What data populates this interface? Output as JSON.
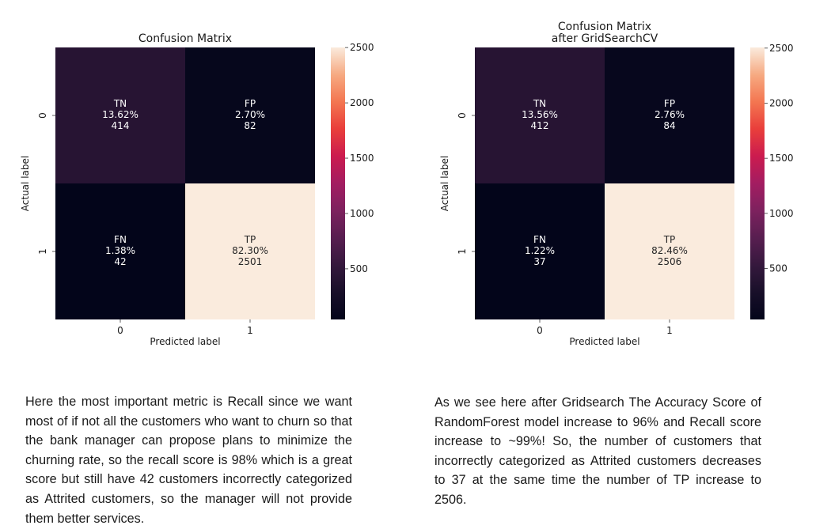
{
  "chart_data": [
    {
      "type": "heatmap",
      "title": [
        "Confusion Matrix"
      ],
      "xlabel": "Predicted label",
      "ylabel": "Actual label",
      "x_categories": [
        "0",
        "1"
      ],
      "y_categories": [
        "0",
        "1"
      ],
      "cells": [
        {
          "row": 0,
          "col": 0,
          "name": "TN",
          "percent": "13.62%",
          "value": 414
        },
        {
          "row": 0,
          "col": 1,
          "name": "FP",
          "percent": "2.70%",
          "value": 82
        },
        {
          "row": 1,
          "col": 0,
          "name": "FN",
          "percent": "1.38%",
          "value": 42
        },
        {
          "row": 1,
          "col": 1,
          "name": "TP",
          "percent": "82.30%",
          "value": 2501
        }
      ],
      "colorbar": {
        "ticks": [
          500,
          1000,
          1500,
          2000,
          2500
        ],
        "range": [
          42,
          2501
        ],
        "colormap": "rocket"
      }
    },
    {
      "type": "heatmap",
      "title": [
        "Confusion Matrix",
        "after GridSearchCV"
      ],
      "xlabel": "Predicted label",
      "ylabel": "Actual label",
      "x_categories": [
        "0",
        "1"
      ],
      "y_categories": [
        "0",
        "1"
      ],
      "cells": [
        {
          "row": 0,
          "col": 0,
          "name": "TN",
          "percent": "13.56%",
          "value": 412
        },
        {
          "row": 0,
          "col": 1,
          "name": "FP",
          "percent": "2.76%",
          "value": 84
        },
        {
          "row": 1,
          "col": 0,
          "name": "FN",
          "percent": "1.22%",
          "value": 37
        },
        {
          "row": 1,
          "col": 1,
          "name": "TP",
          "percent": "82.46%",
          "value": 2506
        }
      ],
      "colorbar": {
        "ticks": [
          500,
          1000,
          1500,
          2000,
          2500
        ],
        "range": [
          37,
          2506
        ],
        "colormap": "rocket"
      }
    }
  ],
  "text": {
    "left": "Here the most important metric is Recall since we want most of if not all the customers who want to churn so that the bank manager can propose plans to minimize the churning rate, so the recall score is 98% which is a great score but still have 42 customers incorrectly categorized as Attrited customers, so the manager will not provide them better services.",
    "right": "As we see here after Gridsearch The Accuracy Score of RandomForest model increase to 96% and Recall score increase to ~99%! So, the number of customers that incorrectly categorized as Attrited customers decreases to 37 at the same time the number of TP increase to 2506."
  }
}
